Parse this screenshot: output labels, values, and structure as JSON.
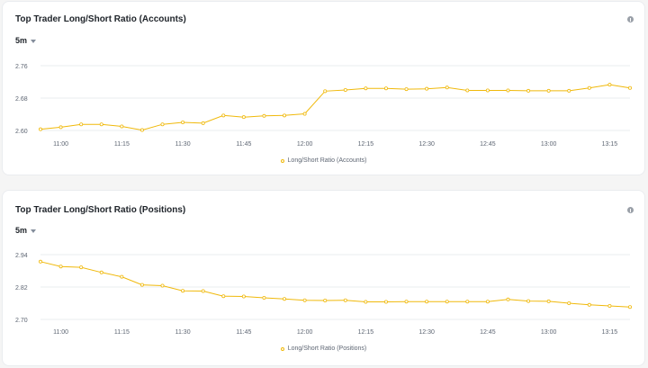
{
  "cards": [
    {
      "title": "Top Trader Long/Short Ratio (Accounts)",
      "interval": "5m",
      "legend": "Long/Short Ratio (Accounts)",
      "icon": "info-icon"
    },
    {
      "title": "Top Trader Long/Short Ratio (Positions)",
      "interval": "5m",
      "legend": "Long/Short Ratio (Positions)",
      "icon": "info-icon"
    }
  ],
  "colors": {
    "line": "#f0b90b",
    "grid": "#eaecef",
    "tick": "#5e6673",
    "axis": "#eaecef"
  },
  "chart_data": [
    {
      "type": "line",
      "title": "Top Trader Long/Short Ratio (Accounts)",
      "xlabel": "",
      "ylabel": "",
      "x_ticks": [
        "11:00",
        "11:15",
        "11:30",
        "11:45",
        "12:00",
        "12:15",
        "12:30",
        "12:45",
        "13:00",
        "13:15"
      ],
      "y_ticks": [
        "2.76",
        "2.68",
        "2.60"
      ],
      "ylim": [
        2.6,
        2.76
      ],
      "x_range": [
        "10:55",
        "13:20"
      ],
      "grid": true,
      "legend_position": "bottom",
      "series": [
        {
          "name": "Long/Short Ratio (Accounts)",
          "x": [
            "10:55",
            "11:00",
            "11:05",
            "11:10",
            "11:15",
            "11:20",
            "11:25",
            "11:30",
            "11:35",
            "11:40",
            "11:45",
            "11:50",
            "11:55",
            "12:00",
            "12:05",
            "12:10",
            "12:15",
            "12:20",
            "12:25",
            "12:30",
            "12:35",
            "12:40",
            "12:45",
            "12:50",
            "12:55",
            "13:00",
            "13:05",
            "13:10",
            "13:15",
            "13:20"
          ],
          "values": [
            2.603,
            2.608,
            2.615,
            2.615,
            2.61,
            2.601,
            2.615,
            2.62,
            2.618,
            2.637,
            2.633,
            2.636,
            2.637,
            2.641,
            2.697,
            2.7,
            2.704,
            2.704,
            2.702,
            2.703,
            2.706,
            2.699,
            2.699,
            2.699,
            2.698,
            2.698,
            2.698,
            2.705,
            2.713,
            2.705
          ]
        }
      ]
    },
    {
      "type": "line",
      "title": "Top Trader Long/Short Ratio (Positions)",
      "xlabel": "",
      "ylabel": "",
      "x_ticks": [
        "11:00",
        "11:15",
        "11:30",
        "11:45",
        "12:00",
        "12:15",
        "12:30",
        "12:45",
        "13:00",
        "13:15"
      ],
      "y_ticks": [
        "2.94",
        "2.82",
        "2.70"
      ],
      "ylim": [
        2.7,
        2.94
      ],
      "x_range": [
        "10:55",
        "13:20"
      ],
      "grid": true,
      "legend_position": "bottom",
      "series": [
        {
          "name": "Long/Short Ratio (Positions)",
          "x": [
            "10:55",
            "11:00",
            "11:05",
            "11:10",
            "11:15",
            "11:20",
            "11:25",
            "11:30",
            "11:35",
            "11:40",
            "11:45",
            "11:50",
            "11:55",
            "12:00",
            "12:05",
            "12:10",
            "12:15",
            "12:20",
            "12:25",
            "12:30",
            "12:35",
            "12:40",
            "12:45",
            "12:50",
            "12:55",
            "13:00",
            "13:05",
            "13:10",
            "13:15",
            "13:20"
          ],
          "values": [
            2.914,
            2.896,
            2.893,
            2.874,
            2.858,
            2.828,
            2.825,
            2.806,
            2.805,
            2.786,
            2.785,
            2.78,
            2.776,
            2.771,
            2.77,
            2.771,
            2.765,
            2.765,
            2.766,
            2.766,
            2.766,
            2.766,
            2.766,
            2.774,
            2.768,
            2.767,
            2.76,
            2.754,
            2.75,
            2.746
          ]
        }
      ]
    }
  ]
}
